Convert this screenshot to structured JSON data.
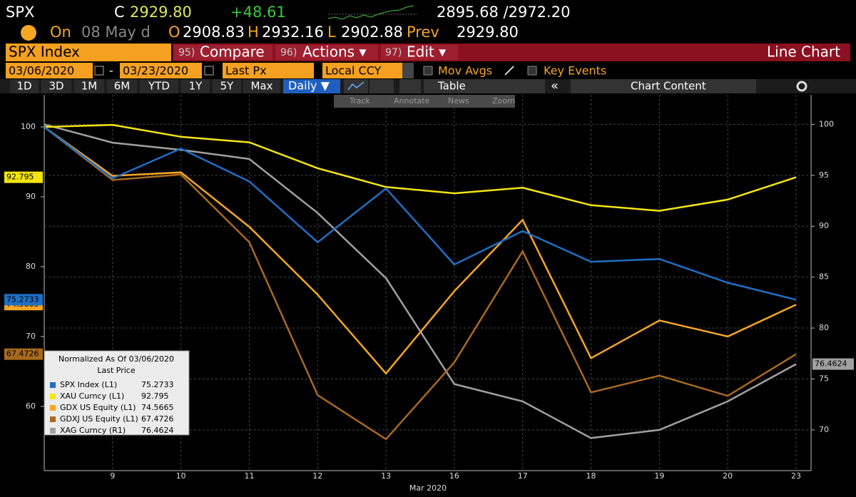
{
  "header": {
    "ticker": "SPX",
    "c_label": "C",
    "price": "2929.80",
    "change": "+48.61",
    "range": "2895.68 /2972.20",
    "on_label": "On",
    "on_date": "08 May d",
    "open_label": "O",
    "open": "2908.83",
    "high_label": "H",
    "high": "2932.16",
    "low_label": "L",
    "low": "2902.88",
    "prev_label": "Prev",
    "prev": "2929.80"
  },
  "menu": {
    "security": "SPX Index",
    "items": [
      {
        "key": "95)",
        "label": "Compare"
      },
      {
        "key": "96)",
        "label": "Actions ▾"
      },
      {
        "key": "97)",
        "label": "Edit ▾"
      }
    ],
    "view": "Line Chart"
  },
  "controls": {
    "start": "03/06/2020",
    "dash": "-",
    "end": "03/23/2020",
    "field": "Last Px",
    "currency": "Local CCY",
    "mov_avgs": "Mov Avgs",
    "key_events": "Key Events"
  },
  "periods": [
    "1D",
    "3D",
    "1M",
    "6M",
    "YTD",
    "1Y",
    "5Y",
    "Max"
  ],
  "toolbar": {
    "frequency": "Daily ▼",
    "table": "Table",
    "collapse": "«",
    "content": "Chart Content"
  },
  "tools": [
    "Track",
    "Annotate",
    "News",
    "Zoom"
  ],
  "chart_data": {
    "type": "line",
    "categories": [
      null,
      "9",
      "10",
      "11",
      "12",
      "13",
      "16",
      "17",
      "18",
      "19",
      "20",
      "23"
    ],
    "xlabel": "Mar 2020",
    "ylim": [
      50.8,
      104.6
    ],
    "yticks": [
      60,
      70,
      80,
      90,
      100
    ],
    "y2lim": [
      66.0,
      102.9
    ],
    "y2ticks": [
      70,
      75,
      80,
      85,
      90,
      95,
      100
    ],
    "grid": true,
    "legend_title": "Normalized As Of 03/06/2020",
    "legend_subtitle": "Last Price",
    "legend_position": "lower left",
    "series": [
      {
        "name": "SPX Index (L1)",
        "color": "#1f6fc5",
        "values": [
          100,
          92.65,
          96.9,
          92.2,
          83.5,
          91.2,
          80.3,
          85.1,
          80.7,
          81.1,
          77.7,
          75.2733
        ]
      },
      {
        "name": "XAU Curncy (L1)",
        "color": "#f5e50f",
        "values": [
          100,
          100.3,
          98.6,
          97.8,
          94.1,
          91.4,
          90.5,
          91.3,
          88.8,
          88.0,
          89.6,
          92.795
        ]
      },
      {
        "name": "GDX US Equity (L1)",
        "color": "#f5a623",
        "values": [
          100,
          93.0,
          93.5,
          85.7,
          76.0,
          64.7,
          76.5,
          86.7,
          66.9,
          72.3,
          70.0,
          74.5665
        ]
      },
      {
        "name": "GDXJ US Equity (L1)",
        "color": "#a86a1e",
        "values": [
          100,
          92.4,
          93.2,
          83.5,
          61.6,
          55.3,
          66.3,
          82.2,
          62.0,
          64.4,
          61.5,
          67.4726
        ]
      },
      {
        "name": "XAG Curncy (R1)",
        "color": "#a0a0a0",
        "axis": "y2",
        "values": [
          100,
          98.2,
          97.5,
          96.6,
          91.3,
          84.9,
          74.5,
          72.8,
          69.2,
          70.0,
          72.8,
          76.4624
        ]
      }
    ]
  }
}
